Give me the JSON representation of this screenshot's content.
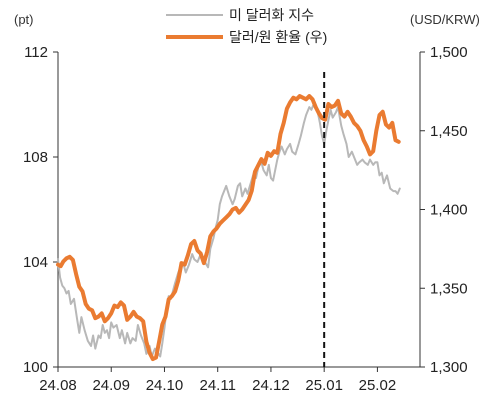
{
  "chart_data": {
    "type": "line",
    "title": "",
    "left_axis_unit": "(pt)",
    "right_axis_unit": "(USD/KRW)",
    "x_ticks": [
      "24.08",
      "24.09",
      "24.10",
      "24.11",
      "24.12",
      "25.01",
      "25.02"
    ],
    "y_left_ticks": [
      "100",
      "104",
      "108",
      "112"
    ],
    "y_right_ticks": [
      "1,300",
      "1,350",
      "1,400",
      "1,450",
      "1,500"
    ],
    "y_left_range": [
      100,
      112
    ],
    "y_right_range": [
      1300,
      1500
    ],
    "x_range_months": [
      0,
      6.8
    ],
    "reference_line": {
      "label": "25.01",
      "x": 5,
      "style": "dashed",
      "color": "#111111"
    },
    "grid": false,
    "legend_position": "top-center",
    "series": [
      {
        "name": "미 달러화 지수",
        "axis": "left",
        "color": "#b8b8b8",
        "points": [
          [
            0.0,
            104.1
          ],
          [
            0.04,
            103.4
          ],
          [
            0.08,
            103.1
          ],
          [
            0.12,
            103.0
          ],
          [
            0.16,
            102.8
          ],
          [
            0.2,
            102.9
          ],
          [
            0.24,
            102.4
          ],
          [
            0.3,
            102.6
          ],
          [
            0.36,
            101.8
          ],
          [
            0.4,
            101.3
          ],
          [
            0.44,
            101.9
          ],
          [
            0.5,
            101.4
          ],
          [
            0.56,
            101.0
          ],
          [
            0.62,
            100.8
          ],
          [
            0.66,
            101.2
          ],
          [
            0.7,
            100.7
          ],
          [
            0.76,
            101.2
          ],
          [
            0.8,
            101.1
          ],
          [
            0.84,
            101.6
          ],
          [
            0.88,
            101.3
          ],
          [
            0.92,
            101.4
          ],
          [
            0.96,
            101.1
          ],
          [
            1.0,
            101.7
          ],
          [
            1.04,
            101.5
          ],
          [
            1.1,
            101.6
          ],
          [
            1.16,
            101.1
          ],
          [
            1.2,
            101.4
          ],
          [
            1.26,
            100.9
          ],
          [
            1.3,
            101.3
          ],
          [
            1.36,
            100.9
          ],
          [
            1.4,
            101.1
          ],
          [
            1.46,
            101.0
          ],
          [
            1.5,
            101.6
          ],
          [
            1.56,
            101.2
          ],
          [
            1.62,
            100.9
          ],
          [
            1.66,
            100.5
          ],
          [
            1.72,
            100.8
          ],
          [
            1.76,
            100.4
          ],
          [
            1.82,
            100.7
          ],
          [
            1.86,
            100.6
          ],
          [
            1.92,
            100.4
          ],
          [
            1.96,
            100.9
          ],
          [
            2.0,
            101.5
          ],
          [
            2.04,
            102.2
          ],
          [
            2.08,
            102.7
          ],
          [
            2.12,
            102.6
          ],
          [
            2.16,
            102.9
          ],
          [
            2.2,
            103.2
          ],
          [
            2.26,
            103.6
          ],
          [
            2.3,
            103.8
          ],
          [
            2.36,
            103.9
          ],
          [
            2.4,
            103.6
          ],
          [
            2.46,
            103.9
          ],
          [
            2.52,
            104.3
          ],
          [
            2.56,
            104.1
          ],
          [
            2.62,
            104.0
          ],
          [
            2.68,
            104.3
          ],
          [
            2.72,
            104.2
          ],
          [
            2.76,
            104.0
          ],
          [
            2.82,
            103.8
          ],
          [
            2.86,
            104.5
          ],
          [
            2.92,
            104.9
          ],
          [
            2.96,
            105.3
          ],
          [
            3.0,
            105.6
          ],
          [
            3.04,
            106.2
          ],
          [
            3.08,
            106.5
          ],
          [
            3.12,
            106.7
          ],
          [
            3.16,
            106.9
          ],
          [
            3.22,
            106.5
          ],
          [
            3.28,
            106.2
          ],
          [
            3.32,
            106.4
          ],
          [
            3.38,
            106.9
          ],
          [
            3.42,
            107.0
          ],
          [
            3.46,
            106.5
          ],
          [
            3.52,
            106.8
          ],
          [
            3.56,
            106.6
          ],
          [
            3.62,
            107.0
          ],
          [
            3.68,
            107.4
          ],
          [
            3.72,
            107.2
          ],
          [
            3.76,
            107.6
          ],
          [
            3.82,
            107.8
          ],
          [
            3.86,
            107.5
          ],
          [
            3.92,
            107.3
          ],
          [
            3.96,
            107.7
          ],
          [
            4.0,
            107.2
          ],
          [
            4.04,
            107.1
          ],
          [
            4.08,
            107.5
          ],
          [
            4.12,
            107.9
          ],
          [
            4.16,
            108.2
          ],
          [
            4.2,
            108.4
          ],
          [
            4.26,
            108.1
          ],
          [
            4.3,
            108.3
          ],
          [
            4.36,
            108.5
          ],
          [
            4.4,
            108.2
          ],
          [
            4.46,
            108.1
          ],
          [
            4.52,
            108.5
          ],
          [
            4.56,
            108.8
          ],
          [
            4.62,
            109.3
          ],
          [
            4.66,
            109.6
          ],
          [
            4.72,
            109.9
          ],
          [
            4.76,
            109.8
          ],
          [
            4.82,
            110.1
          ],
          [
            4.86,
            109.9
          ],
          [
            4.92,
            109.3
          ],
          [
            4.96,
            108.8
          ],
          [
            5.0,
            108.5
          ],
          [
            5.04,
            109.0
          ],
          [
            5.08,
            109.4
          ],
          [
            5.12,
            109.8
          ],
          [
            5.16,
            109.5
          ],
          [
            5.22,
            109.7
          ],
          [
            5.26,
            109.9
          ],
          [
            5.32,
            109.2
          ],
          [
            5.36,
            108.9
          ],
          [
            5.42,
            108.5
          ],
          [
            5.46,
            108.0
          ],
          [
            5.52,
            108.2
          ],
          [
            5.56,
            108.0
          ],
          [
            5.62,
            107.7
          ],
          [
            5.66,
            107.8
          ],
          [
            5.72,
            107.9
          ],
          [
            5.76,
            107.8
          ],
          [
            5.82,
            107.7
          ],
          [
            5.86,
            107.9
          ],
          [
            5.92,
            107.7
          ],
          [
            5.96,
            107.8
          ],
          [
            6.0,
            107.8
          ],
          [
            6.04,
            107.3
          ],
          [
            6.08,
            107.4
          ],
          [
            6.12,
            107.0
          ],
          [
            6.18,
            107.3
          ],
          [
            6.24,
            106.8
          ],
          [
            6.3,
            106.7
          ],
          [
            6.34,
            106.7
          ],
          [
            6.38,
            106.6
          ],
          [
            6.42,
            106.8
          ]
        ]
      },
      {
        "name": "달러/원 환율 (우)",
        "axis": "right",
        "color": "#ea7b31",
        "points": [
          [
            0.0,
            1365
          ],
          [
            0.05,
            1364
          ],
          [
            0.1,
            1367
          ],
          [
            0.16,
            1369
          ],
          [
            0.22,
            1370
          ],
          [
            0.28,
            1368
          ],
          [
            0.34,
            1359
          ],
          [
            0.4,
            1351
          ],
          [
            0.46,
            1348
          ],
          [
            0.52,
            1340
          ],
          [
            0.58,
            1337
          ],
          [
            0.64,
            1336
          ],
          [
            0.7,
            1331
          ],
          [
            0.76,
            1332
          ],
          [
            0.82,
            1334
          ],
          [
            0.88,
            1329
          ],
          [
            0.94,
            1331
          ],
          [
            1.0,
            1334
          ],
          [
            1.06,
            1339
          ],
          [
            1.12,
            1338
          ],
          [
            1.18,
            1341
          ],
          [
            1.24,
            1339
          ],
          [
            1.3,
            1330
          ],
          [
            1.36,
            1332
          ],
          [
            1.42,
            1335
          ],
          [
            1.48,
            1332
          ],
          [
            1.54,
            1331
          ],
          [
            1.6,
            1329
          ],
          [
            1.66,
            1316
          ],
          [
            1.72,
            1309
          ],
          [
            1.78,
            1305
          ],
          [
            1.84,
            1306
          ],
          [
            1.9,
            1316
          ],
          [
            1.96,
            1327
          ],
          [
            2.02,
            1332
          ],
          [
            2.08,
            1343
          ],
          [
            2.14,
            1345
          ],
          [
            2.2,
            1348
          ],
          [
            2.26,
            1355
          ],
          [
            2.32,
            1366
          ],
          [
            2.38,
            1365
          ],
          [
            2.44,
            1371
          ],
          [
            2.5,
            1378
          ],
          [
            2.56,
            1380
          ],
          [
            2.62,
            1374
          ],
          [
            2.68,
            1372
          ],
          [
            2.74,
            1366
          ],
          [
            2.8,
            1373
          ],
          [
            2.86,
            1383
          ],
          [
            2.92,
            1386
          ],
          [
            2.98,
            1388
          ],
          [
            3.04,
            1391
          ],
          [
            3.1,
            1393
          ],
          [
            3.16,
            1395
          ],
          [
            3.22,
            1397
          ],
          [
            3.28,
            1400
          ],
          [
            3.34,
            1401
          ],
          [
            3.4,
            1398
          ],
          [
            3.46,
            1400
          ],
          [
            3.52,
            1403
          ],
          [
            3.58,
            1406
          ],
          [
            3.64,
            1412
          ],
          [
            3.7,
            1424
          ],
          [
            3.76,
            1428
          ],
          [
            3.82,
            1432
          ],
          [
            3.88,
            1429
          ],
          [
            3.94,
            1436
          ],
          [
            4.0,
            1434
          ],
          [
            4.06,
            1437
          ],
          [
            4.12,
            1436
          ],
          [
            4.18,
            1448
          ],
          [
            4.24,
            1455
          ],
          [
            4.3,
            1464
          ],
          [
            4.36,
            1468
          ],
          [
            4.42,
            1471
          ],
          [
            4.48,
            1470
          ],
          [
            4.54,
            1472
          ],
          [
            4.6,
            1471
          ],
          [
            4.66,
            1470
          ],
          [
            4.72,
            1472
          ],
          [
            4.78,
            1470
          ],
          [
            4.84,
            1465
          ],
          [
            4.9,
            1461
          ],
          [
            4.96,
            1458
          ],
          [
            5.02,
            1457
          ],
          [
            5.08,
            1467
          ],
          [
            5.14,
            1465
          ],
          [
            5.2,
            1466
          ],
          [
            5.26,
            1469
          ],
          [
            5.32,
            1461
          ],
          [
            5.38,
            1459
          ],
          [
            5.44,
            1462
          ],
          [
            5.5,
            1459
          ],
          [
            5.56,
            1455
          ],
          [
            5.62,
            1453
          ],
          [
            5.68,
            1450
          ],
          [
            5.74,
            1444
          ],
          [
            5.8,
            1440
          ],
          [
            5.86,
            1435
          ],
          [
            5.92,
            1437
          ],
          [
            5.98,
            1450
          ],
          [
            6.04,
            1460
          ],
          [
            6.1,
            1462
          ],
          [
            6.16,
            1454
          ],
          [
            6.22,
            1452
          ],
          [
            6.28,
            1455
          ],
          [
            6.34,
            1444
          ],
          [
            6.4,
            1443
          ]
        ]
      }
    ]
  }
}
